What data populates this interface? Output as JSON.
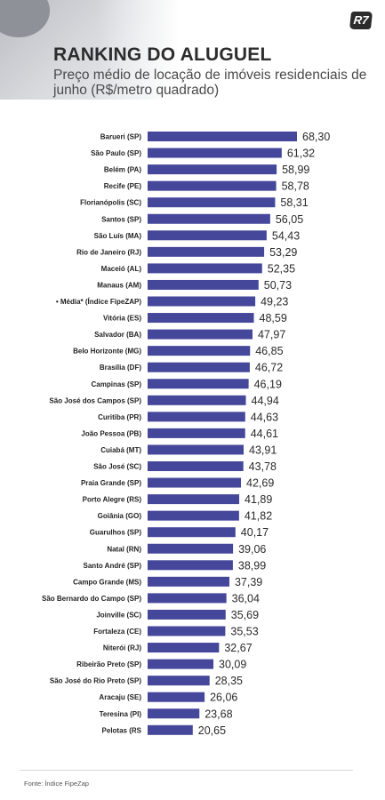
{
  "header": {
    "logo_text": "R7",
    "title": "RANKING DO ALUGUEL",
    "subtitle": "Preço médio de locação de imóveis residenciais de junho (R$/metro quadrado)"
  },
  "footer": {
    "source": "Fonte: Índice FipeZap"
  },
  "colors": {
    "bar": "#45479a",
    "label_text": "#1f1f1f",
    "value_text": "#2a2a2a"
  },
  "chart_data": {
    "type": "bar",
    "orientation": "horizontal",
    "title": "RANKING DO ALUGUEL",
    "subtitle": "Preço médio de locação de imóveis residenciais de junho (R$/metro quadrado)",
    "xlabel": "",
    "ylabel": "",
    "grid": false,
    "legend": "none",
    "categories": [
      "Barueri (SP)",
      "São Paulo (SP)",
      "Belém (PA)",
      "Recife (PE)",
      "Florianópolis (SC)",
      "Santos (SP)",
      "São Luís (MA)",
      "Rio de Janeiro (RJ)",
      "Maceió (AL)",
      "Manaus (AM)",
      "• Média* (Índice FipeZAP)",
      "Vitória (ES)",
      "Salvador (BA)",
      "Belo Horizonte (MG)",
      "Brasília (DF)",
      "Campinas (SP)",
      "São José dos Campos (SP)",
      "Curitiba (PR)",
      "João Pessoa (PB)",
      "Cuiabá (MT)",
      "São José (SC)",
      "Praia Grande (SP)",
      "Porto Alegre (RS)",
      "Goiânia (GO)",
      "Guarulhos (SP)",
      "Natal (RN)",
      "Santo André (SP)",
      "Campo Grande (MS)",
      "São Bernardo do Campo (SP)",
      "Joinville (SC)",
      "Fortaleza (CE)",
      "Niterói (RJ)",
      "Ribeirão Preto (SP)",
      "São José do Rio Preto (SP)",
      "Aracaju (SE)",
      "Teresina (PI)",
      "Pelotas (RS"
    ],
    "values": [
      68.3,
      61.32,
      58.99,
      58.78,
      58.31,
      56.05,
      54.43,
      53.29,
      52.35,
      50.73,
      49.23,
      48.59,
      47.97,
      46.85,
      46.72,
      46.19,
      44.94,
      44.63,
      44.61,
      43.91,
      43.78,
      42.69,
      41.89,
      41.82,
      40.17,
      39.06,
      38.99,
      37.39,
      36.04,
      35.69,
      35.53,
      32.67,
      30.09,
      28.35,
      26.06,
      23.68,
      20.65
    ],
    "value_labels": [
      "68,30",
      "61,32",
      "58,99",
      "58,78",
      "58,31",
      "56,05",
      "54,43",
      "53,29",
      "52,35",
      "50,73",
      "49,23",
      "48,59",
      "47,97",
      "46,85",
      "46,72",
      "46,19",
      "44,94",
      "44,63",
      "44,61",
      "43,91",
      "43,78",
      "42,69",
      "41,89",
      "41,82",
      "40,17",
      "39,06",
      "38,99",
      "37,39",
      "36,04",
      "35,69",
      "35,53",
      "32,67",
      "30,09",
      "28,35",
      "26,06",
      "23,68",
      "20,65"
    ]
  }
}
